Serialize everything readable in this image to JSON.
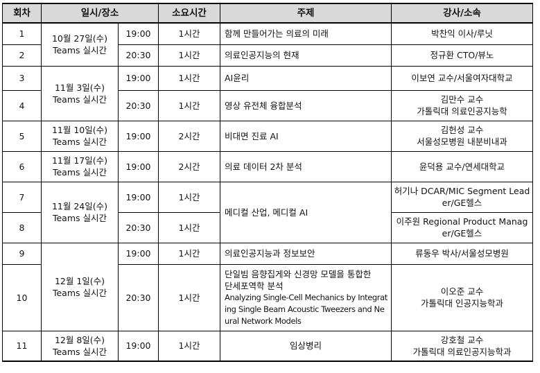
{
  "headers": {
    "session": "회차",
    "datetime": "일시/장소",
    "duration": "소요시간",
    "topic": "주제",
    "speaker": "강사/소속"
  },
  "rows": [
    {
      "no": "1",
      "date": "10월 27일(수)\nTeams 실시간",
      "time": "19:00",
      "duration": "1시간",
      "topic": "함께 만들어가는 의료의 미래",
      "speaker": "박찬익 이사/루닛"
    },
    {
      "no": "2",
      "time": "20:30",
      "duration": "1시간",
      "topic": "의료인공지능의 현재",
      "speaker": "정규환 CTO/뷰노"
    },
    {
      "no": "3",
      "date": "11월 3일(수)\nTeams 실시간",
      "time": "19:00",
      "duration": "1시간",
      "topic": "AI윤리",
      "speaker": "이보연 교수/서울여자대학교"
    },
    {
      "no": "4",
      "time": "20:30",
      "duration": "1시간",
      "topic": "영상 유전체 융합분석",
      "speaker": "김만수 교수\n가톨릭대 의료인공지능학"
    },
    {
      "no": "5",
      "date": "11월 10일(수)\nTeams 실시간",
      "time": "19:00",
      "duration": "2시간",
      "topic": "비대면 진료 AI",
      "speaker": "김헌성 교수\n서울성모병원 내분비내과"
    },
    {
      "no": "6",
      "date": "11월 17일(수)\nTeams 실시간",
      "time": "19:00",
      "duration": "2시간",
      "topic": "의료 데이터 2차 분석",
      "speaker": "윤덕용 교수/연세대학교"
    },
    {
      "no": "7",
      "date": "11월 24일(수)\nTeams 실시간",
      "time": "19:00",
      "duration": "1시간",
      "topic": "메디컬 산업, 메디컬 AI",
      "speaker": "허기나 DCAR/MIC Segment Leader/GE헬스"
    },
    {
      "no": "8",
      "time": "20:30",
      "duration": "1시간",
      "speaker": "이주원 Regional Product Manager/GE헬스"
    },
    {
      "no": "9",
      "date": "12월 1일(수)\nTeams 실시간",
      "time": "19:00",
      "duration": "1시간",
      "topic": "의료인공지능과 정보보안",
      "speaker": "류동우 박사/서울성모병원"
    },
    {
      "no": "10",
      "time": "20:30",
      "duration": "1시간",
      "topic": "단일빔 음향집게와 신경망 모델을 통합한\n단세포역학 분석",
      "topic_en": "Analyzing Single-Cell Mechanics by Integrating Single Beam Acoustic Tweezers and Neural Network Models",
      "speaker": "이오준 교수\n가톨릭대 인공지능학과"
    },
    {
      "no": "11",
      "date": "12월 8일(수)\nTeams 실시간",
      "time": "19:00",
      "duration": "1시간",
      "topic": "임상병리",
      "speaker": "강호철 교수\n가톨릭대 의료인공지능학과"
    }
  ]
}
